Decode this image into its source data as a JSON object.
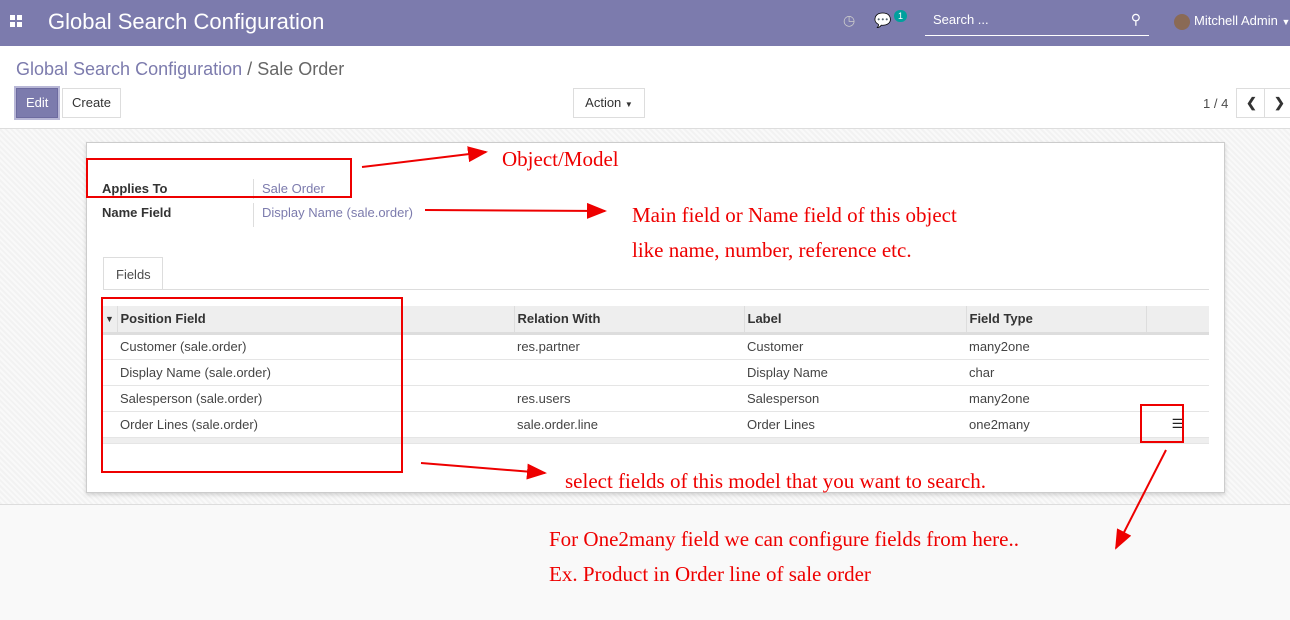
{
  "navbar": {
    "app_title": "Global Search Configuration",
    "search_placeholder": "Search ...",
    "messages_count": "1",
    "user_name": "Mitchell Admin",
    "color": "#7c7bad"
  },
  "breadcrumb": {
    "parent": "Global Search Configuration",
    "separator": "/",
    "current": "Sale Order"
  },
  "toolbar": {
    "edit": "Edit",
    "create": "Create",
    "action": "Action",
    "pager": "1 / 4"
  },
  "form": {
    "applies_to_label": "Applies To",
    "applies_to_value": "Sale Order",
    "name_field_label": "Name Field",
    "name_field_value": "Display Name (sale.order)"
  },
  "tabs": [
    {
      "label": "Fields"
    }
  ],
  "table": {
    "columns": [
      "Position Field",
      "Relation With",
      "Label",
      "Field Type"
    ],
    "rows": [
      [
        "Customer (sale.order)",
        "res.partner",
        "Customer",
        "many2one"
      ],
      [
        "Display Name (sale.order)",
        "",
        "Display Name",
        "char"
      ],
      [
        "Salesperson (sale.order)",
        "res.users",
        "Salesperson",
        "many2one"
      ],
      [
        "Order Lines (sale.order)",
        "sale.order.line",
        "Order Lines",
        "one2many"
      ]
    ]
  },
  "annotations": {
    "object_model": "Object/Model",
    "name_field_1": "Main field or Name field of this object",
    "name_field_2": "like name, number, reference etc.",
    "select_fields": "select fields of this model that you want to search.",
    "one2many_1": "For One2many field we can configure fields from here..",
    "one2many_2": "Ex. Product in Order line of sale order",
    "color": "#ee0000"
  }
}
